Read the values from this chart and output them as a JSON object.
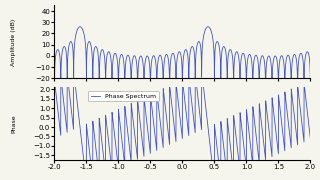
{
  "xlim": [
    -2.0,
    2.0
  ],
  "amp_ylim": [
    -20,
    45
  ],
  "phase_ylim": [
    -1.75,
    2.1
  ],
  "amp_yticks": [
    -20,
    -10,
    0,
    10,
    20,
    30,
    40
  ],
  "phase_yticks": [
    -1.5,
    -1.0,
    -0.5,
    0.0,
    0.5,
    1.0,
    1.5,
    2.0
  ],
  "xticks": [
    -2.0,
    -1.5,
    -1.0,
    -0.5,
    0.0,
    0.5,
    1.0,
    1.5,
    2.0
  ],
  "freq0": 0.4,
  "line_color": "#4455bb",
  "amp_ylabel": "Amplitude (dB)",
  "phase_ylabel": "Phase",
  "legend_label": "Phase Spectrum",
  "num_points": 3000,
  "N": 20,
  "background_color": "#f5f5ee"
}
